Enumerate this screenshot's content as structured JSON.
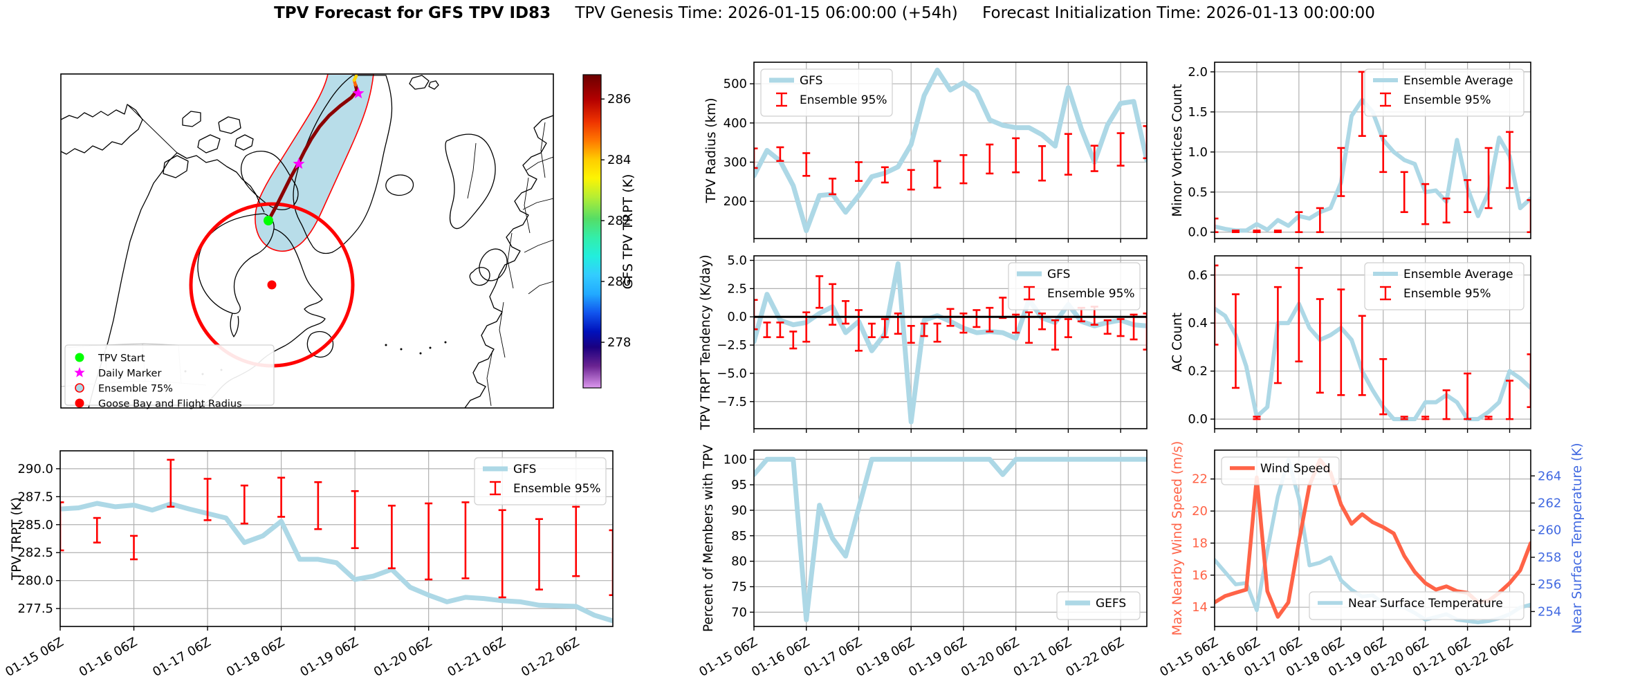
{
  "title": {
    "main": "TPV Forecast for GFS TPV ID83",
    "genesis": "TPV Genesis Time: 2026-01-15 06:00:00 (+54h)",
    "init": "Forecast Initialization Time: 2026-01-13 00:00:00"
  },
  "colors": {
    "gfs_line": "#add8e6",
    "error_bar": "#ff0000",
    "wind": "#ff6347",
    "temp_axis_blue": "#4169e1",
    "grid": "#b0b0b0",
    "track": "#8b0000",
    "track_tip_orange": "#ff6a00",
    "track_tip_yellow": "#ffd400",
    "ensemble_fill": "#b8dde9",
    "ensemble_edge": "#ff0000",
    "flight_circle": "#ff0000",
    "tpv_start": "#00ff00",
    "daily_marker": "#ff00ff"
  },
  "map": {
    "legend": [
      {
        "label": "TPV Start",
        "marker": "circle",
        "color": "#00ff00"
      },
      {
        "label": "Daily Marker",
        "marker": "star",
        "color": "#ff00ff"
      },
      {
        "label": "Ensemble 75%",
        "marker": "circle-outline",
        "color": "#add8e6",
        "edge": "#ff0000"
      },
      {
        "label": "Goose Bay and Flight Radius",
        "marker": "circle",
        "color": "#ff0000"
      }
    ],
    "colorbar": {
      "label": "GFS TPV TRPT (K)",
      "ticks": [
        286,
        284,
        282,
        280,
        278
      ],
      "vmin": 276.5,
      "vmax": 286.8
    }
  },
  "time_axis": {
    "start": "2026-01-15 06Z",
    "end": "2026-01-22 18Z",
    "step_hours": 6,
    "n_points": 31,
    "tick_indices": [
      0,
      4,
      8,
      12,
      16,
      20,
      24,
      28
    ],
    "tick_labels": [
      "01-15 06Z",
      "01-16 06Z",
      "01-17 06Z",
      "01-18 06Z",
      "01-19 06Z",
      "01-20 06Z",
      "01-21 06Z",
      "01-22 06Z"
    ]
  },
  "chart_data": [
    {
      "key": "tpv_trpt",
      "type": "line",
      "ylabel": "TPV TRPT (K)",
      "ylim": [
        275.9,
        291.6
      ],
      "yticks": [
        277.5,
        280.0,
        282.5,
        285.0,
        287.5,
        290.0
      ],
      "ytick_labels": [
        "277.5",
        "280.0",
        "282.5",
        "285.0",
        "287.5",
        "290.0"
      ],
      "show_x_labels": true,
      "series": [
        {
          "name": "GFS",
          "color": "#add8e6",
          "values": [
            286.4,
            286.5,
            286.9,
            286.6,
            286.75,
            286.3,
            286.85,
            286.4,
            286.0,
            285.6,
            283.4,
            284.0,
            285.3,
            281.9,
            281.9,
            281.6,
            280.1,
            280.4,
            281.0,
            279.4,
            278.7,
            278.1,
            278.5,
            278.4,
            278.2,
            278.1,
            277.8,
            277.75,
            277.7,
            276.9,
            276.4
          ]
        }
      ],
      "error_bars": {
        "name": "Ensemble 95%",
        "color": "#ff0000",
        "points": [
          [
            0,
            282.7,
            287.0
          ],
          [
            2,
            283.4,
            285.6
          ],
          [
            4,
            281.9,
            284.0
          ],
          [
            6,
            286.6,
            290.8
          ],
          [
            8,
            285.4,
            289.1
          ],
          [
            10,
            285.1,
            288.5
          ],
          [
            12,
            285.7,
            289.2
          ],
          [
            14,
            284.6,
            288.8
          ],
          [
            16,
            282.9,
            288.0
          ],
          [
            18,
            281.1,
            286.7
          ],
          [
            20,
            280.1,
            286.9
          ],
          [
            22,
            280.2,
            287.0
          ],
          [
            24,
            278.5,
            286.3
          ],
          [
            26,
            279.2,
            285.5
          ],
          [
            28,
            280.4,
            286.6
          ],
          [
            30,
            278.7,
            284.5
          ]
        ]
      },
      "legends": [
        {
          "position": "top-right",
          "items": [
            "GFS",
            "Ensemble 95%"
          ]
        }
      ]
    },
    {
      "key": "tpv_radius",
      "type": "line",
      "ylabel": "TPV Radius (km)",
      "ylim": [
        105,
        555
      ],
      "yticks": [
        200,
        300,
        400,
        500
      ],
      "ytick_labels": [
        "200",
        "300",
        "400",
        "500"
      ],
      "show_x_labels": false,
      "series": [
        {
          "name": "GFS",
          "color": "#add8e6",
          "values": [
            265,
            330,
            303,
            240,
            125,
            215,
            218,
            172,
            215,
            263,
            272,
            288,
            345,
            470,
            535,
            484,
            503,
            480,
            408,
            394,
            388,
            388,
            370,
            341,
            490,
            385,
            300,
            395,
            450,
            455,
            305
          ]
        }
      ],
      "error_bars": {
        "name": "Ensemble 95%",
        "color": "#ff0000",
        "points": [
          [
            0,
            285,
            335
          ],
          [
            2,
            303,
            338
          ],
          [
            4,
            265,
            323
          ],
          [
            6,
            218,
            258
          ],
          [
            8,
            252,
            300
          ],
          [
            10,
            248,
            287
          ],
          [
            12,
            230,
            280
          ],
          [
            14,
            235,
            303
          ],
          [
            16,
            246,
            318
          ],
          [
            18,
            271,
            345
          ],
          [
            20,
            274,
            361
          ],
          [
            22,
            253,
            341
          ],
          [
            24,
            268,
            372
          ],
          [
            26,
            277,
            342
          ],
          [
            28,
            291,
            374
          ],
          [
            30,
            310,
            392
          ]
        ]
      },
      "legends": [
        {
          "position": "top-left",
          "items": [
            "GFS",
            "Ensemble 95%"
          ]
        }
      ]
    },
    {
      "key": "trpt_tendency",
      "type": "line",
      "ylabel": "TPV TRPT Tendency (K/day)",
      "ylim": [
        -9.9,
        5.4
      ],
      "yticks": [
        5.0,
        2.5,
        0.0,
        -2.5,
        -5.0,
        -7.5
      ],
      "ytick_labels": [
        "5.0",
        "2.5",
        "0.0",
        "−2.5",
        "−5.0",
        "−7.5"
      ],
      "zero_line": true,
      "show_x_labels": false,
      "series": [
        {
          "name": "GFS",
          "color": "#add8e6",
          "values": [
            -2.2,
            2.0,
            -0.3,
            -0.7,
            -0.5,
            0.3,
            0.9,
            -1.4,
            -0.4,
            -3.0,
            -1.5,
            4.7,
            -9.3,
            -0.3,
            0.1,
            -0.4,
            -1.0,
            -1.4,
            -1.3,
            -1.4,
            -1.9,
            1.5,
            -0.1,
            -0.5,
            1.1,
            -0.4,
            -0.8,
            -0.5,
            -0.3,
            -0.7,
            -0.8
          ]
        }
      ],
      "error_bars": {
        "name": "Ensemble 95%",
        "color": "#ff0000",
        "points": [
          [
            0,
            -1.1,
            1.5
          ],
          [
            1,
            -1.8,
            -0.5
          ],
          [
            2,
            -1.8,
            -0.5
          ],
          [
            3,
            -2.8,
            -1.3
          ],
          [
            4,
            -2.2,
            0.4
          ],
          [
            5,
            0.8,
            3.6
          ],
          [
            6,
            -0.7,
            2.9
          ],
          [
            7,
            -0.6,
            1.4
          ],
          [
            8,
            -3.0,
            0.6
          ],
          [
            9,
            -1.8,
            -0.6
          ],
          [
            10,
            -1.8,
            -0.2
          ],
          [
            11,
            -1.5,
            0.3
          ],
          [
            12,
            -2.3,
            -0.8
          ],
          [
            13,
            -1.7,
            -0.6
          ],
          [
            14,
            -2.2,
            -0.6
          ],
          [
            15,
            -0.8,
            0.7
          ],
          [
            16,
            -1.4,
            0.3
          ],
          [
            17,
            -0.9,
            0.6
          ],
          [
            18,
            -1.3,
            0.8
          ],
          [
            19,
            -0.1,
            1.7
          ],
          [
            20,
            -1.4,
            0.2
          ],
          [
            21,
            -2.3,
            0.4
          ],
          [
            22,
            -1.1,
            0.3
          ],
          [
            23,
            -2.9,
            -0.3
          ],
          [
            24,
            -1.8,
            -0.2
          ],
          [
            25,
            -0.4,
            0.8
          ],
          [
            26,
            -0.7,
            0.9
          ],
          [
            27,
            -1.5,
            -0.3
          ],
          [
            28,
            -1.7,
            -0.2
          ],
          [
            29,
            -2.0,
            0.2
          ],
          [
            30,
            -2.9,
            0.3
          ]
        ]
      },
      "legends": [
        {
          "position": "top-right",
          "items": [
            "GFS",
            "Ensemble 95%"
          ]
        }
      ]
    },
    {
      "key": "percent_members",
      "type": "line",
      "ylabel": "Percent of Members with TPV",
      "ylim": [
        67.2,
        101.8
      ],
      "yticks": [
        70,
        75,
        80,
        85,
        90,
        95,
        100
      ],
      "ytick_labels": [
        "70",
        "75",
        "80",
        "85",
        "90",
        "95",
        "100"
      ],
      "show_x_labels": true,
      "series": [
        {
          "name": "GEFS",
          "color": "#add8e6",
          "values": [
            97,
            100,
            100,
            100,
            68.5,
            91,
            84.5,
            81,
            90.5,
            100,
            100,
            100,
            100,
            100,
            100,
            100,
            100,
            100,
            100,
            97,
            100,
            100,
            100,
            100,
            100,
            100,
            100,
            100,
            100,
            100,
            100
          ]
        }
      ],
      "legends": [
        {
          "position": "bottom-right",
          "items": [
            "GEFS"
          ]
        }
      ]
    },
    {
      "key": "minor_vortices",
      "type": "line",
      "ylabel": "Minor Vortices Count",
      "ylim": [
        -0.08,
        2.12
      ],
      "yticks": [
        0.0,
        0.5,
        1.0,
        1.5,
        2.0
      ],
      "ytick_labels": [
        "0.0",
        "0.5",
        "1.0",
        "1.5",
        "2.0"
      ],
      "show_x_labels": false,
      "series": [
        {
          "name": "Ensemble Average",
          "color": "#add8e6",
          "values": [
            0.07,
            0.04,
            0.02,
            0.02,
            0.1,
            0.03,
            0.15,
            0.08,
            0.2,
            0.17,
            0.25,
            0.3,
            0.62,
            1.45,
            1.65,
            1.5,
            1.15,
            1.0,
            0.9,
            0.85,
            0.5,
            0.52,
            0.38,
            1.15,
            0.55,
            0.2,
            0.5,
            1.18,
            0.95,
            0.3,
            0.42
          ]
        }
      ],
      "error_bars": {
        "name": "Ensemble 95%",
        "color": "#ff0000",
        "points": [
          [
            0,
            0,
            0.17
          ],
          [
            2,
            0,
            0.02
          ],
          [
            4,
            0,
            0.02
          ],
          [
            6,
            0,
            0.02
          ],
          [
            8,
            0,
            0.25
          ],
          [
            10,
            0,
            0.3
          ],
          [
            12,
            0.45,
            1.05
          ],
          [
            14,
            1.2,
            2.0
          ],
          [
            16,
            0.75,
            1.2
          ],
          [
            18,
            0.25,
            0.75
          ],
          [
            20,
            0.1,
            0.6
          ],
          [
            22,
            0.12,
            0.42
          ],
          [
            24,
            0.25,
            0.65
          ],
          [
            26,
            0.3,
            1.05
          ],
          [
            28,
            0.55,
            1.25
          ],
          [
            30,
            0,
            0.4
          ]
        ]
      },
      "legends": [
        {
          "position": "top-right",
          "items": [
            "Ensemble Average",
            "Ensemble 95%"
          ]
        }
      ]
    },
    {
      "key": "ac_count",
      "type": "line",
      "ylabel": "AC Count",
      "ylim": [
        -0.04,
        0.68
      ],
      "yticks": [
        0.0,
        0.2,
        0.4,
        0.6
      ],
      "ytick_labels": [
        "0.0",
        "0.2",
        "0.4",
        "0.6"
      ],
      "show_x_labels": false,
      "series": [
        {
          "name": "Ensemble Average",
          "color": "#add8e6",
          "values": [
            0.46,
            0.43,
            0.35,
            0.22,
            0.01,
            0.05,
            0.4,
            0.4,
            0.48,
            0.38,
            0.33,
            0.35,
            0.38,
            0.33,
            0.2,
            0.12,
            0.05,
            0.0,
            0.0,
            0.0,
            0.07,
            0.07,
            0.1,
            0.07,
            0.0,
            0.0,
            0.03,
            0.07,
            0.2,
            0.17,
            0.13
          ]
        }
      ],
      "error_bars": {
        "name": "Ensemble 95%",
        "color": "#ff0000",
        "points": [
          [
            0,
            0.31,
            0.64
          ],
          [
            2,
            0.13,
            0.52
          ],
          [
            4,
            0,
            0.01
          ],
          [
            6,
            0.15,
            0.55
          ],
          [
            8,
            0.24,
            0.63
          ],
          [
            10,
            0.11,
            0.5
          ],
          [
            12,
            0.1,
            0.54
          ],
          [
            14,
            0.1,
            0.43
          ],
          [
            16,
            0.02,
            0.25
          ],
          [
            18,
            0,
            0.01
          ],
          [
            20,
            0,
            0.01
          ],
          [
            22,
            0,
            0.12
          ],
          [
            24,
            0,
            0.19
          ],
          [
            26,
            0,
            0.01
          ],
          [
            28,
            0,
            0.16
          ],
          [
            30,
            0.05,
            0.27
          ]
        ]
      },
      "legends": [
        {
          "position": "top-right",
          "items": [
            "Ensemble Average",
            "Ensemble 95%"
          ]
        }
      ]
    },
    {
      "key": "wind_temp",
      "type": "line",
      "ylabel": "Max Nearby Wind Speed (m/s)",
      "ylabel_color": "#ff6347",
      "ylim": [
        12.8,
        23.8
      ],
      "yticks": [
        14,
        16,
        18,
        20,
        22
      ],
      "ytick_labels": [
        "14",
        "16",
        "18",
        "20",
        "22"
      ],
      "ytick_color": "#ff6347",
      "right_axis": {
        "ylabel": "Near Surface Temperature (K)",
        "color": "#4169e1",
        "ylim": [
          252.9,
          265.9
        ],
        "yticks": [
          254,
          256,
          258,
          260,
          262,
          264
        ],
        "ytick_labels": [
          "254",
          "256",
          "258",
          "260",
          "262",
          "264"
        ]
      },
      "show_x_labels": true,
      "series": [
        {
          "name": "Near Surface Temperature",
          "color": "#add8e6",
          "axis": "right",
          "values": [
            257.8,
            256.9,
            256.0,
            256.1,
            254.1,
            258.5,
            262.5,
            265.2,
            262.3,
            257.4,
            257.6,
            258.0,
            256.3,
            255.6,
            255.1,
            255.2,
            254.6,
            254.4,
            254.3,
            253.9,
            253.4,
            253.6,
            253.8,
            253.4,
            253.3,
            253.2,
            253.3,
            253.5,
            253.8,
            254.3,
            254.5
          ]
        },
        {
          "name": "Wind Speed",
          "color": "#ff6347",
          "axis": "left",
          "values": [
            14.3,
            14.7,
            14.9,
            15.1,
            22.1,
            15.0,
            13.4,
            14.3,
            18.1,
            21.6,
            23.2,
            22.4,
            20.4,
            19.2,
            19.8,
            19.3,
            19.0,
            18.6,
            17.2,
            16.2,
            15.5,
            15.1,
            15.3,
            15.0,
            14.9,
            14.3,
            14.4,
            14.9,
            15.5,
            16.3,
            18.0
          ]
        }
      ],
      "legends": [
        {
          "position": "top-left",
          "items": [
            "Wind Speed"
          ]
        },
        {
          "position": "bottom-right",
          "items": [
            "Near Surface Temperature"
          ]
        }
      ]
    }
  ]
}
